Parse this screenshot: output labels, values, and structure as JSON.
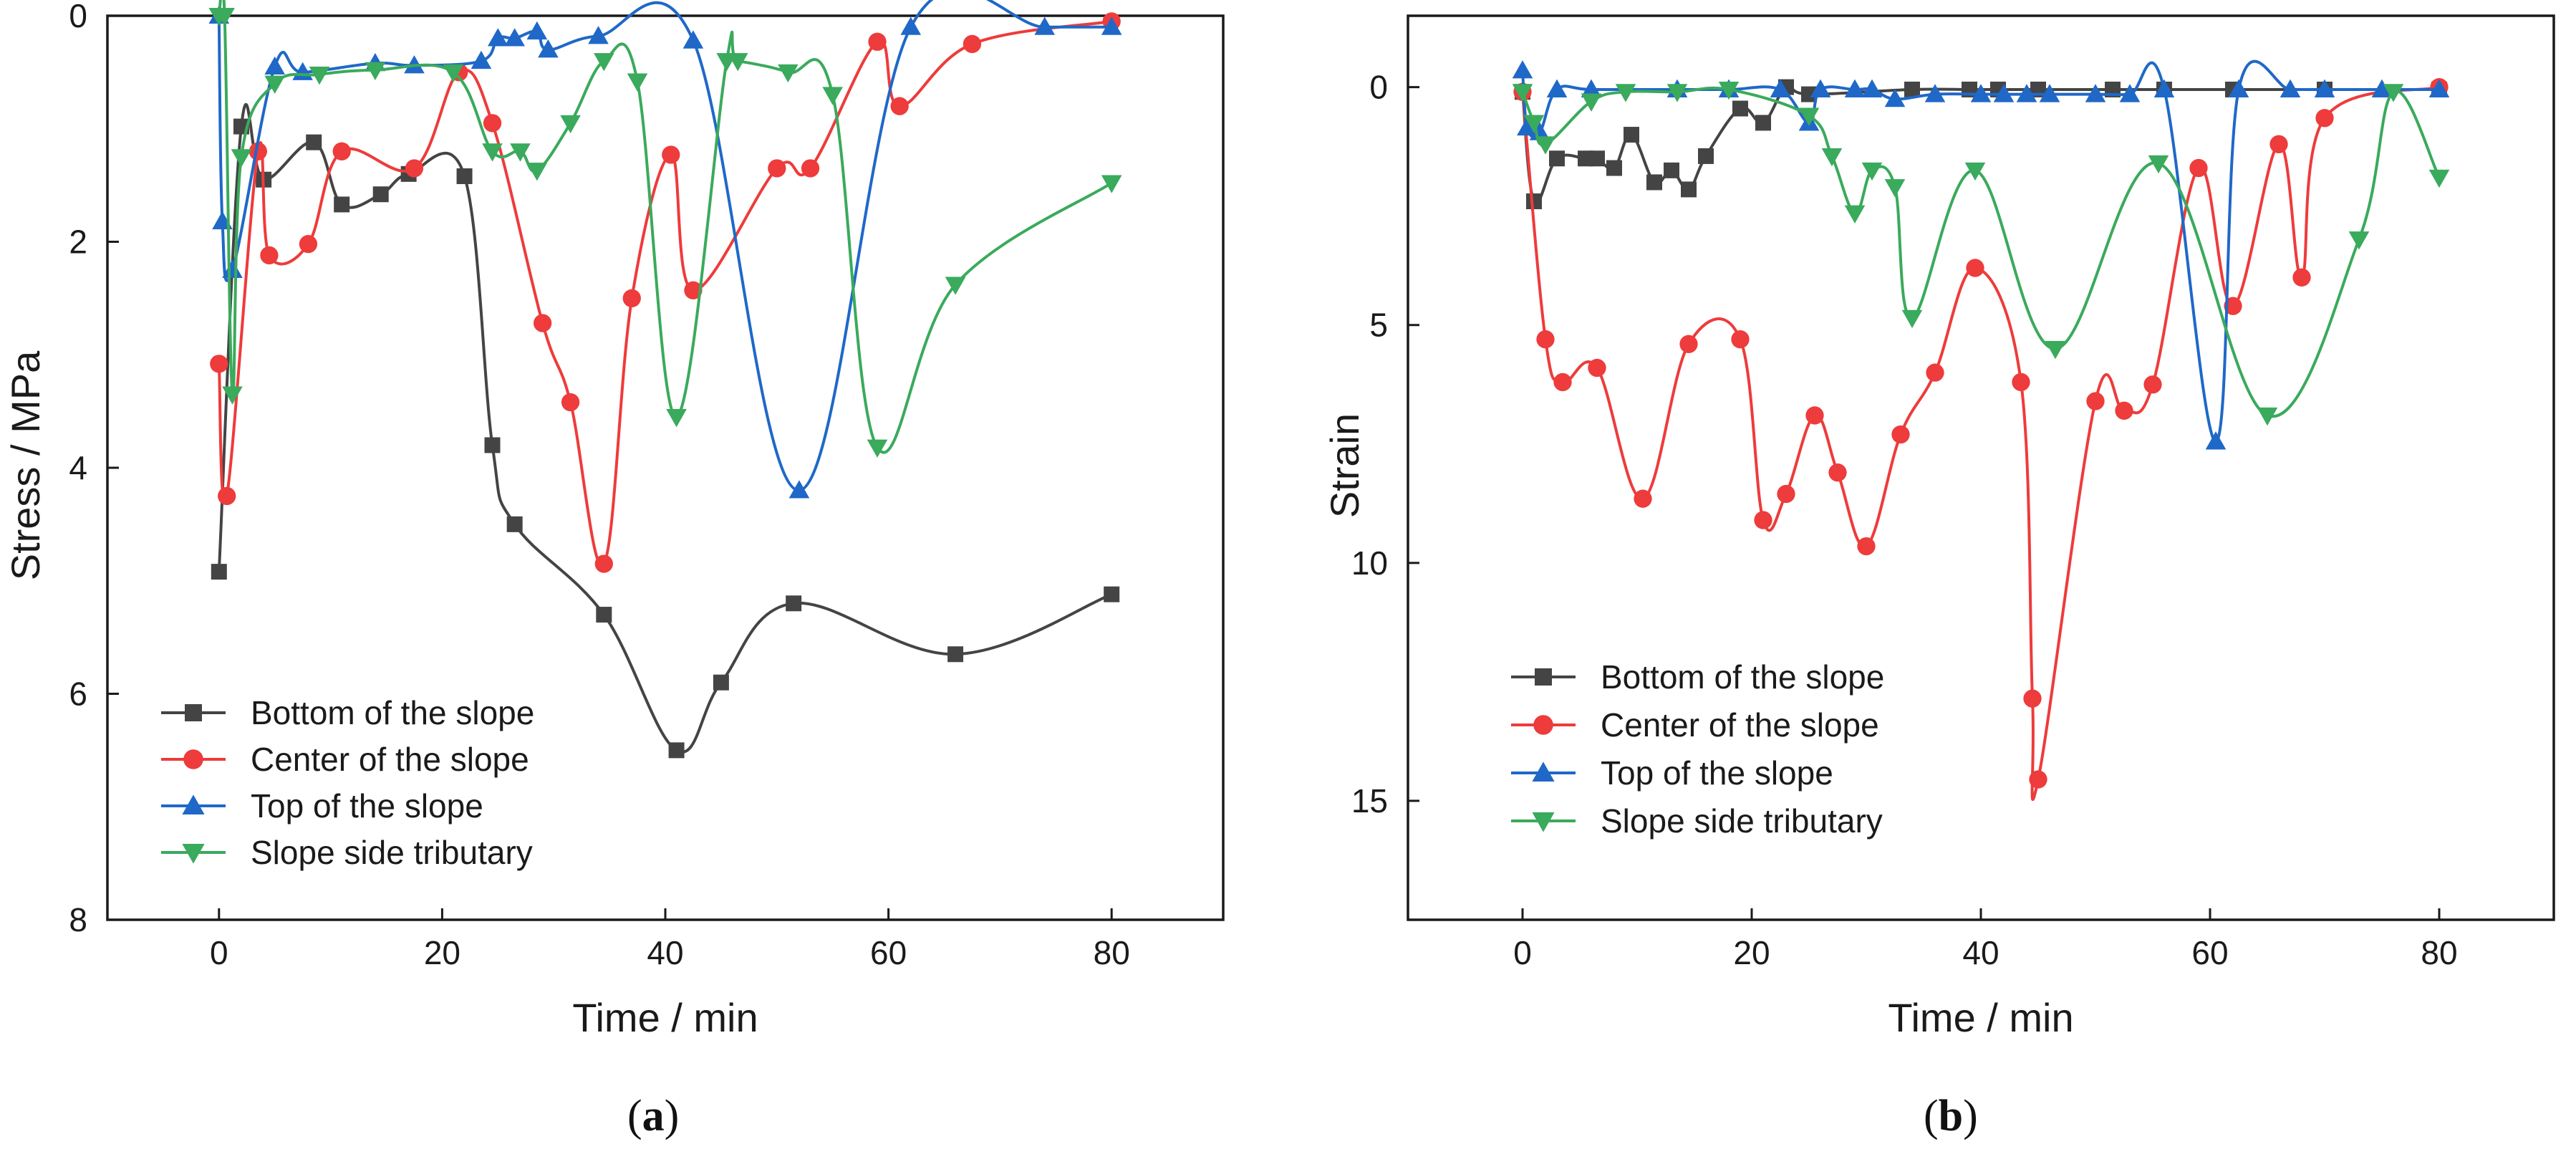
{
  "chart_data": [
    {
      "id": "a",
      "type": "line",
      "panel_label": "a",
      "xlabel": "Time / min",
      "ylabel": "Stress / MPa",
      "xlim": [
        -10,
        90
      ],
      "ylim": [
        0,
        8
      ],
      "y_inverted": true,
      "xticks": [
        0,
        20,
        40,
        60,
        80
      ],
      "yticks": [
        0,
        2,
        4,
        6,
        8
      ],
      "legend_position": "bottom-left",
      "series": [
        {
          "name": "Bottom of the slope",
          "color": "#444444",
          "marker": "square",
          "x": [
            0,
            2,
            4,
            8.5,
            11,
            14.5,
            17,
            22,
            24.5,
            26.5,
            34.5,
            41,
            45,
            51.5,
            66,
            80
          ],
          "y": [
            4.92,
            0.98,
            1.45,
            1.12,
            1.67,
            1.58,
            1.4,
            1.42,
            3.8,
            4.5,
            5.3,
            6.5,
            5.9,
            5.2,
            5.65,
            5.12
          ]
        },
        {
          "name": "Center of the slope",
          "color": "#ee3b3b",
          "marker": "circle",
          "x": [
            0,
            0.7,
            3.5,
            4.5,
            8,
            11,
            17.5,
            21.5,
            24.5,
            29,
            31.5,
            34.5,
            37,
            40.5,
            42.5,
            50,
            53,
            59,
            61,
            67.5,
            80
          ],
          "y": [
            3.08,
            4.25,
            1.2,
            2.12,
            2.02,
            1.2,
            1.35,
            0.5,
            0.95,
            2.72,
            3.42,
            4.85,
            2.5,
            1.23,
            2.43,
            1.35,
            1.35,
            0.23,
            0.8,
            0.25,
            0.05
          ]
        },
        {
          "name": "Top of the slope",
          "color": "#1f68c8",
          "marker": "triangle-up",
          "x": [
            0,
            0.3,
            1.2,
            5,
            7.5,
            14,
            17.5,
            23.5,
            25,
            26.5,
            28.5,
            29.5,
            34,
            42.5,
            52,
            62,
            74,
            80
          ],
          "y": [
            0,
            1.82,
            2.25,
            0.45,
            0.5,
            0.42,
            0.44,
            0.4,
            0.2,
            0.2,
            0.14,
            0.3,
            0.18,
            0.22,
            4.2,
            0.1,
            0.1,
            0.1
          ]
        },
        {
          "name": "Slope side tributary",
          "color": "#3aaa5c",
          "marker": "triangle-down",
          "x": [
            0,
            0.5,
            1.2,
            2,
            5,
            9,
            14,
            21,
            24.5,
            27,
            28.5,
            31.5,
            34.5,
            37.5,
            41,
            45.5,
            46.5,
            51,
            55,
            59,
            66,
            80
          ],
          "y": [
            0,
            0,
            3.35,
            1.25,
            0.6,
            0.52,
            0.48,
            0.5,
            1.2,
            1.2,
            1.37,
            0.95,
            0.4,
            0.58,
            3.55,
            0.4,
            0.4,
            0.5,
            0.7,
            3.82,
            2.38,
            1.48
          ]
        }
      ]
    },
    {
      "id": "b",
      "type": "line",
      "panel_label": "b",
      "xlabel": "Time / min",
      "ylabel": "Strain",
      "xlim": [
        -10,
        90
      ],
      "ylim": [
        -1.5,
        17.5
      ],
      "y_inverted": true,
      "xticks": [
        0,
        20,
        40,
        60,
        80
      ],
      "yticks": [
        0,
        5,
        10,
        15
      ],
      "legend_position": "bottom-left",
      "series": [
        {
          "name": "Bottom of the slope",
          "color": "#444444",
          "marker": "square",
          "x": [
            0,
            1,
            3,
            5.5,
            6.5,
            8,
            9.5,
            11.5,
            13,
            14.5,
            16,
            19,
            21,
            23,
            25,
            34,
            39,
            41.5,
            45,
            51.5,
            56,
            62,
            70,
            80
          ],
          "y": [
            0.1,
            2.4,
            1.5,
            1.5,
            1.5,
            1.7,
            1.0,
            2.0,
            1.75,
            2.15,
            1.45,
            0.45,
            0.75,
            0.0,
            0.15,
            0.05,
            0.05,
            0.05,
            0.05,
            0.05,
            0.05,
            0.05,
            0.05,
            0.05
          ]
        },
        {
          "name": "Center of the slope",
          "color": "#ee3b3b",
          "marker": "circle",
          "x": [
            0,
            2,
            3.5,
            6.5,
            10.5,
            14.5,
            19,
            21,
            23,
            25.5,
            27.5,
            30,
            33,
            36,
            39.5,
            43.5,
            44.5,
            45,
            50,
            52.5,
            55,
            59,
            62,
            66,
            68,
            70,
            80
          ],
          "y": [
            0.1,
            5.3,
            6.2,
            5.9,
            8.65,
            5.4,
            5.3,
            9.1,
            8.55,
            6.9,
            8.1,
            9.65,
            7.3,
            6.0,
            3.8,
            6.2,
            12.85,
            14.55,
            6.6,
            6.8,
            6.25,
            1.7,
            4.6,
            1.2,
            4.0,
            0.65,
            0.0
          ]
        },
        {
          "name": "Top of the slope",
          "color": "#1f68c8",
          "marker": "triangle-up",
          "x": [
            0,
            0.4,
            1.5,
            3,
            6,
            13.5,
            18,
            22.5,
            25,
            26,
            29,
            30.5,
            32.5,
            36,
            40,
            42,
            44,
            46,
            50,
            53,
            56,
            60.5,
            62.5,
            67,
            70,
            75,
            80
          ],
          "y": [
            -0.35,
            0.85,
            0.95,
            0.05,
            0.05,
            0.05,
            0.05,
            0.05,
            0.75,
            0.05,
            0.05,
            0.05,
            0.25,
            0.15,
            0.15,
            0.15,
            0.15,
            0.15,
            0.15,
            0.15,
            0.05,
            7.45,
            0.05,
            0.05,
            0.05,
            0.05,
            0.05
          ]
        },
        {
          "name": "Slope side tributary",
          "color": "#3aaa5c",
          "marker": "triangle-down",
          "x": [
            0,
            1,
            2,
            6,
            9,
            13.5,
            18,
            25,
            27,
            29,
            30.5,
            32.5,
            34,
            39.5,
            46.5,
            55.5,
            65,
            73,
            76,
            80
          ],
          "y": [
            0.1,
            0.75,
            1.2,
            0.3,
            0.1,
            0.1,
            0.05,
            0.6,
            1.45,
            2.65,
            1.75,
            2.1,
            4.85,
            1.75,
            5.5,
            1.6,
            6.9,
            3.2,
            0.1,
            1.9
          ]
        }
      ]
    }
  ]
}
